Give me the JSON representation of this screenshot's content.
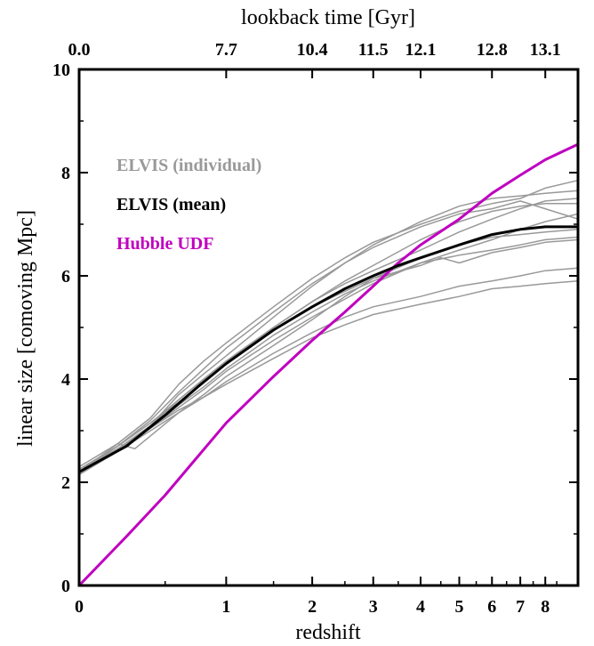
{
  "chart_data": {
    "type": "line",
    "xlabel": "redshift",
    "ylabel": "linear size [comoving Mpc]",
    "top_xlabel": "lookback time [Gyr]",
    "x_scale": "log(1+z)",
    "xlim": [
      0,
      9.5
    ],
    "ylim": [
      0,
      10
    ],
    "x_ticks": [
      0,
      1,
      2,
      3,
      4,
      5,
      6,
      7,
      8
    ],
    "x_tick_labels": [
      "0",
      "1",
      "2",
      "3",
      "4",
      "5",
      "6",
      "7",
      "8"
    ],
    "y_ticks": [
      0,
      2,
      4,
      6,
      8,
      10
    ],
    "y_tick_labels": [
      "0",
      "2",
      "4",
      "6",
      "8",
      "10"
    ],
    "top_ticks": [
      {
        "z": 0,
        "label": "0.0"
      },
      {
        "z": 1,
        "label": "7.7"
      },
      {
        "z": 2,
        "label": "10.4"
      },
      {
        "z": 3,
        "label": "11.5"
      },
      {
        "z": 4,
        "label": "12.1"
      },
      {
        "z": 6,
        "label": "12.8"
      },
      {
        "z": 8,
        "label": "13.1"
      }
    ],
    "legend": [
      {
        "label": "ELVIS (individual)",
        "color": "#999999"
      },
      {
        "label": "ELVIS (mean)",
        "color": "#000000"
      },
      {
        "label": "Hubble UDF",
        "color": "#c000c0"
      }
    ],
    "series": [
      {
        "name": "Hubble UDF",
        "color": "#c000c0",
        "width": 3,
        "x": [
          0,
          0.25,
          0.5,
          0.75,
          1,
          1.5,
          2,
          2.5,
          3,
          3.5,
          4,
          5,
          6,
          7,
          8,
          9.5
        ],
        "y": [
          0,
          0.95,
          1.75,
          2.5,
          3.15,
          4.05,
          4.75,
          5.3,
          5.8,
          6.25,
          6.6,
          7.1,
          7.6,
          7.95,
          8.25,
          8.55
        ]
      },
      {
        "name": "ELVIS (mean)",
        "color": "#000000",
        "width": 3,
        "x": [
          0,
          0.25,
          0.5,
          0.75,
          1,
          1.5,
          2,
          2.5,
          3,
          3.5,
          4,
          5,
          6,
          7,
          8,
          9.5
        ],
        "y": [
          2.2,
          2.7,
          3.3,
          3.85,
          4.3,
          4.95,
          5.4,
          5.75,
          6.0,
          6.2,
          6.35,
          6.6,
          6.8,
          6.9,
          6.95,
          6.95
        ]
      },
      {
        "color": "#999999",
        "width": 1.5,
        "x": [
          0,
          0.2,
          0.4,
          0.6,
          0.8,
          1,
          1.5,
          2,
          2.5,
          3,
          4,
          5,
          6,
          7,
          8,
          9.5
        ],
        "y": [
          2.2,
          2.65,
          3.1,
          3.7,
          4.1,
          4.45,
          5.2,
          5.8,
          6.25,
          6.6,
          7.05,
          7.35,
          7.5,
          7.55,
          7.6,
          7.65
        ]
      },
      {
        "color": "#999999",
        "width": 1.5,
        "x": [
          0,
          0.2,
          0.4,
          0.6,
          0.8,
          1,
          1.5,
          2,
          2.5,
          3,
          4,
          5,
          6,
          7,
          8,
          9.5
        ],
        "y": [
          2.3,
          2.75,
          3.25,
          3.9,
          4.35,
          4.7,
          5.4,
          5.95,
          6.35,
          6.65,
          7.0,
          7.25,
          7.4,
          7.5,
          7.7,
          7.85
        ]
      },
      {
        "color": "#999999",
        "width": 1.5,
        "x": [
          0,
          0.2,
          0.4,
          0.6,
          0.8,
          1,
          1.5,
          2,
          2.5,
          3,
          4,
          5,
          6,
          7,
          8,
          9.5
        ],
        "y": [
          2.25,
          2.7,
          3.15,
          3.6,
          4.0,
          4.35,
          5.0,
          5.5,
          5.9,
          6.2,
          6.7,
          7.05,
          7.25,
          7.35,
          7.4,
          7.4
        ]
      },
      {
        "color": "#999999",
        "width": 1.5,
        "x": [
          0,
          0.2,
          0.3,
          0.4,
          0.6,
          0.8,
          1,
          1.5,
          2,
          2.5,
          3,
          4,
          5,
          6,
          7,
          8,
          9.5
        ],
        "y": [
          2.2,
          2.75,
          2.65,
          2.9,
          3.35,
          3.7,
          4.05,
          4.65,
          5.15,
          5.6,
          5.95,
          6.35,
          6.6,
          6.75,
          6.8,
          6.85,
          6.9
        ]
      },
      {
        "color": "#999999",
        "width": 1.5,
        "x": [
          0,
          0.2,
          0.4,
          0.6,
          0.8,
          1,
          1.5,
          2,
          2.5,
          3,
          4,
          5,
          6,
          7,
          8,
          9.5
        ],
        "y": [
          2.15,
          2.6,
          3.05,
          3.45,
          3.8,
          4.15,
          4.75,
          5.2,
          5.55,
          5.85,
          6.25,
          6.4,
          6.5,
          6.6,
          6.7,
          6.75
        ]
      },
      {
        "color": "#999999",
        "width": 1.5,
        "x": [
          0,
          0.2,
          0.4,
          0.6,
          0.8,
          1,
          1.5,
          2,
          2.5,
          3,
          4,
          5,
          6,
          7,
          8,
          9.5
        ],
        "y": [
          2.2,
          2.6,
          3.0,
          3.35,
          3.65,
          3.95,
          4.5,
          4.9,
          5.2,
          5.4,
          5.6,
          5.8,
          5.9,
          6.0,
          6.1,
          6.15
        ]
      },
      {
        "color": "#999999",
        "width": 1.5,
        "x": [
          0,
          0.2,
          0.4,
          0.6,
          0.8,
          1,
          1.5,
          2,
          2.5,
          3,
          4,
          5,
          6,
          7,
          8,
          9.5
        ],
        "y": [
          2.25,
          2.65,
          3.05,
          3.4,
          3.65,
          3.9,
          4.4,
          4.8,
          5.05,
          5.25,
          5.45,
          5.6,
          5.75,
          5.8,
          5.85,
          5.9
        ]
      },
      {
        "color": "#999999",
        "width": 1.5,
        "x": [
          0,
          0.2,
          0.4,
          0.6,
          0.8,
          1,
          1.5,
          2,
          2.5,
          3,
          4,
          5,
          6,
          7,
          8,
          9.5
        ],
        "y": [
          2.2,
          2.7,
          3.2,
          3.75,
          4.2,
          4.6,
          5.3,
          5.85,
          6.25,
          6.55,
          6.95,
          7.2,
          7.3,
          7.45,
          7.3,
          7.1
        ]
      },
      {
        "color": "#999999",
        "width": 1.5,
        "x": [
          0,
          0.2,
          0.4,
          0.6,
          0.8,
          1,
          1.5,
          2,
          2.5,
          3,
          4,
          5,
          6,
          7,
          8,
          9.5
        ],
        "y": [
          2.15,
          2.6,
          3.1,
          3.6,
          4.0,
          4.35,
          5.0,
          5.5,
          5.85,
          6.1,
          6.5,
          6.85,
          7.1,
          7.3,
          7.45,
          7.5
        ]
      },
      {
        "color": "#999999",
        "width": 1.5,
        "x": [
          0,
          0.2,
          0.4,
          0.6,
          0.8,
          1,
          1.5,
          2,
          2.5,
          3,
          4,
          5,
          6,
          7,
          8,
          9.5
        ],
        "y": [
          2.2,
          2.65,
          3.05,
          3.5,
          3.85,
          4.2,
          4.85,
          5.3,
          5.65,
          5.9,
          6.25,
          6.5,
          6.7,
          6.9,
          7.05,
          7.2
        ]
      },
      {
        "color": "#999999",
        "width": 1.5,
        "x": [
          0,
          0.2,
          0.4,
          0.6,
          0.8,
          1,
          1.5,
          2,
          2.5,
          3,
          4,
          4.5,
          5,
          6,
          7,
          8,
          9.5
        ],
        "y": [
          2.25,
          2.7,
          3.15,
          3.55,
          3.95,
          4.3,
          4.95,
          5.4,
          5.7,
          5.95,
          6.2,
          6.35,
          6.25,
          6.45,
          6.55,
          6.65,
          6.7
        ]
      }
    ]
  }
}
